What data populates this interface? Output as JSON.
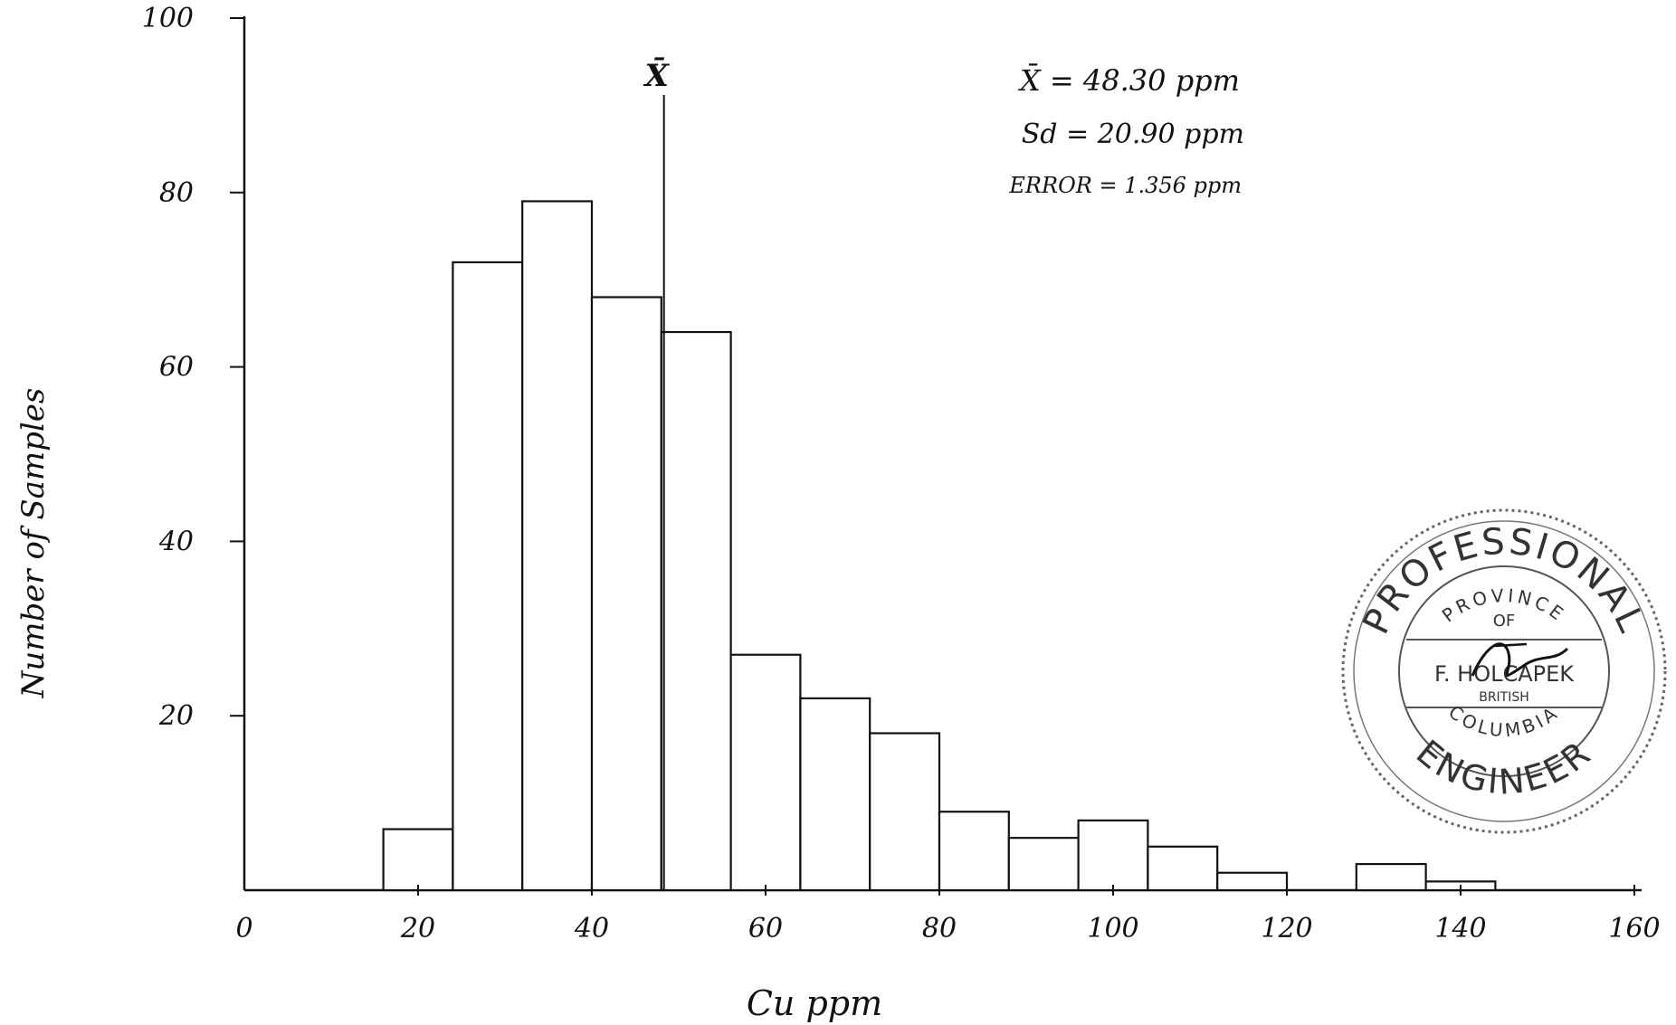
{
  "chart_data": {
    "type": "bar",
    "style": "histogram",
    "xlabel": "Cu ppm",
    "ylabel": "Number of Samples",
    "xlim": [
      0,
      160
    ],
    "ylim": [
      0,
      100
    ],
    "x_ticks": [
      {
        "value": 0,
        "label": "0"
      },
      {
        "value": 20,
        "label": "20"
      },
      {
        "value": 40,
        "label": "40"
      },
      {
        "value": 60,
        "label": "60"
      },
      {
        "value": 80,
        "label": "80"
      },
      {
        "value": 100,
        "label": "100"
      },
      {
        "value": 120,
        "label": "120"
      },
      {
        "value": 140,
        "label": "140"
      },
      {
        "value": 160,
        "label": "160"
      }
    ],
    "y_ticks": [
      {
        "value": 20,
        "label": "20"
      },
      {
        "value": 40,
        "label": "40"
      },
      {
        "value": 60,
        "label": "60"
      },
      {
        "value": 80,
        "label": "80"
      },
      {
        "value": 100,
        "label": "100"
      }
    ],
    "bins": [
      {
        "start": 16,
        "end": 24,
        "count": 7
      },
      {
        "start": 24,
        "end": 32,
        "count": 72
      },
      {
        "start": 32,
        "end": 40,
        "count": 79
      },
      {
        "start": 40,
        "end": 48,
        "count": 68
      },
      {
        "start": 48,
        "end": 56,
        "count": 64
      },
      {
        "start": 56,
        "end": 64,
        "count": 27
      },
      {
        "start": 64,
        "end": 72,
        "count": 22
      },
      {
        "start": 72,
        "end": 80,
        "count": 18
      },
      {
        "start": 80,
        "end": 88,
        "count": 9
      },
      {
        "start": 88,
        "end": 96,
        "count": 6
      },
      {
        "start": 96,
        "end": 104,
        "count": 8
      },
      {
        "start": 104,
        "end": 112,
        "count": 5
      },
      {
        "start": 112,
        "end": 120,
        "count": 2
      },
      {
        "start": 128,
        "end": 136,
        "count": 3
      },
      {
        "start": 136,
        "end": 144,
        "count": 1
      }
    ],
    "mean_marker": {
      "value": 48.3,
      "label": "X̄"
    },
    "annotations": {
      "mean": "X̄ = 48.30 ppm",
      "sd": "Sd = 20.90 ppm",
      "error": "ERROR = 1.356 ppm"
    },
    "grid": false,
    "legend": "none"
  },
  "stamp": {
    "top_text": "PROFESSIONAL",
    "province": "PROVINCE",
    "of": "OF",
    "name": "F. HOLCAPEK",
    "british": "BRITISH",
    "columbia": "COLUMBIA",
    "bottom_text": "ENGINEER"
  }
}
